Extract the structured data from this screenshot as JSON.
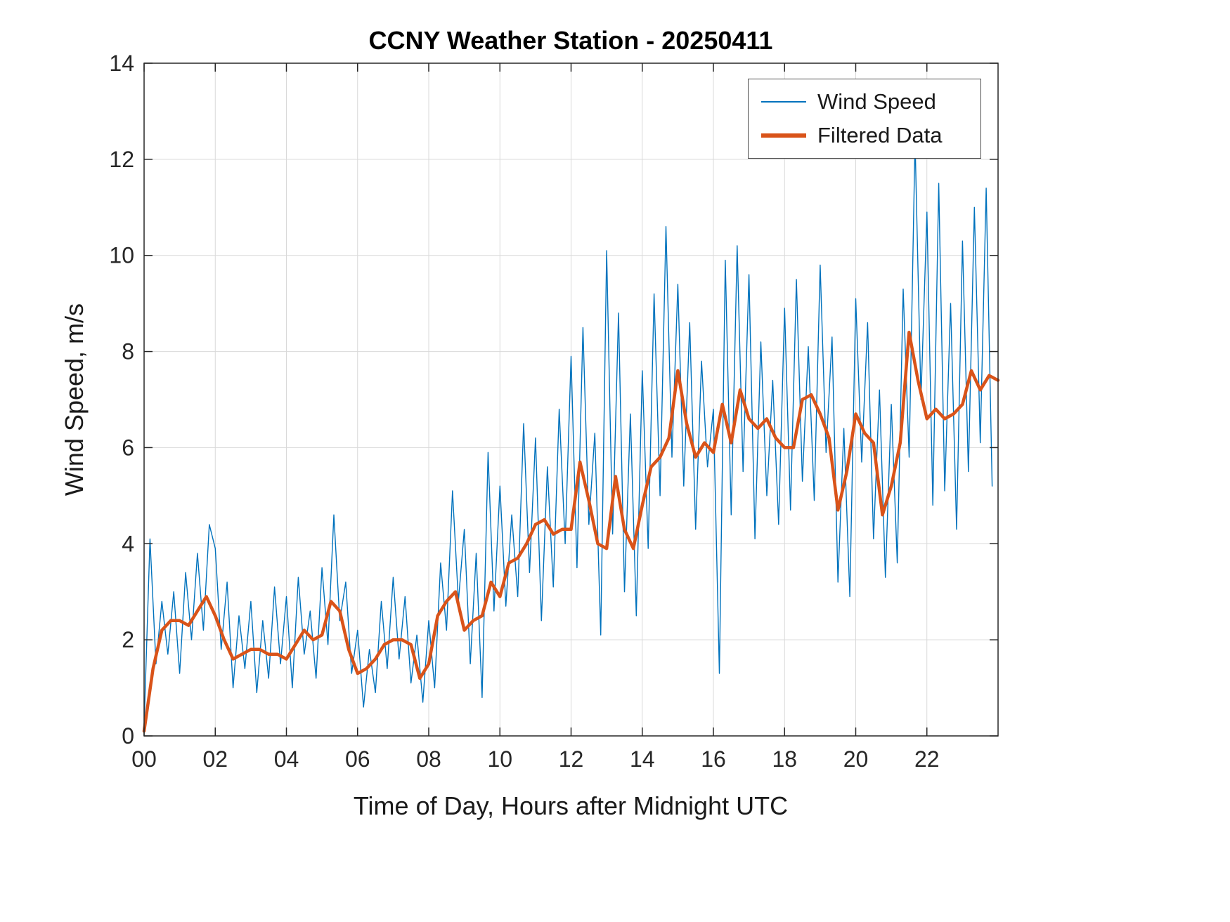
{
  "figure": {
    "background": "#ffffff"
  },
  "chart_data": {
    "type": "line",
    "title": "CCNY Weather Station - 20250411",
    "xlabel": "Time of Day, Hours after Midnight UTC",
    "ylabel": "Wind Speed, m/s",
    "xlim": [
      0,
      24
    ],
    "ylim": [
      0,
      14
    ],
    "grid": true,
    "grid_color": "#d9d9d9",
    "axis_color": "#262626",
    "xticks": {
      "values": [
        0,
        2,
        4,
        6,
        8,
        10,
        12,
        14,
        16,
        18,
        20,
        22
      ],
      "labels": [
        "00",
        "02",
        "04",
        "06",
        "08",
        "10",
        "12",
        "14",
        "16",
        "18",
        "20",
        "22"
      ]
    },
    "yticks": {
      "values": [
        0,
        2,
        4,
        6,
        8,
        10,
        12,
        14
      ],
      "labels": [
        "0",
        "2",
        "4",
        "6",
        "8",
        "10",
        "12",
        "14"
      ]
    },
    "legend": {
      "position": "northeast",
      "entries": [
        {
          "label": "Wind Speed",
          "color": "#0072BD",
          "sample_thickness": 2
        },
        {
          "label": "Filtered Data",
          "color": "#D95319",
          "sample_thickness": 6
        }
      ]
    },
    "series": [
      {
        "name": "Wind Speed",
        "color": "#0072BD",
        "width": 1.4,
        "x0": 0,
        "dx": 0.16667,
        "values": [
          0.2,
          4.1,
          1.5,
          2.8,
          1.7,
          3.0,
          1.3,
          3.4,
          2.0,
          3.8,
          2.2,
          4.4,
          3.9,
          1.8,
          3.2,
          1.0,
          2.5,
          1.4,
          2.8,
          0.9,
          2.4,
          1.2,
          3.1,
          1.5,
          2.9,
          1.0,
          3.3,
          1.7,
          2.6,
          1.2,
          3.5,
          1.9,
          4.6,
          2.4,
          3.2,
          1.3,
          2.2,
          0.6,
          1.8,
          0.9,
          2.8,
          1.4,
          3.3,
          1.6,
          2.9,
          1.1,
          2.1,
          0.7,
          2.4,
          1.0,
          3.6,
          2.2,
          5.1,
          2.8,
          4.3,
          1.5,
          3.8,
          0.8,
          5.9,
          2.6,
          5.2,
          2.7,
          4.6,
          2.9,
          6.5,
          3.4,
          6.2,
          2.4,
          5.6,
          3.1,
          6.8,
          4.0,
          7.9,
          3.5,
          8.5,
          4.4,
          6.3,
          2.1,
          10.1,
          4.2,
          8.8,
          3.0,
          6.7,
          2.5,
          7.6,
          3.9,
          9.2,
          5.0,
          10.6,
          5.8,
          9.4,
          5.2,
          8.6,
          4.3,
          7.8,
          5.6,
          6.8,
          1.3,
          9.9,
          4.6,
          10.2,
          5.5,
          9.6,
          4.1,
          8.2,
          5.0,
          7.4,
          4.4,
          8.9,
          4.7,
          9.5,
          5.3,
          8.1,
          4.9,
          9.8,
          5.9,
          8.3,
          3.2,
          6.4,
          2.9,
          9.1,
          5.7,
          8.6,
          4.1,
          7.2,
          3.3,
          6.9,
          3.6,
          9.3,
          5.8,
          12.4,
          7.0,
          10.9,
          4.8,
          11.5,
          5.1,
          9.0,
          4.3,
          10.3,
          5.5,
          11.0,
          6.1,
          11.4,
          5.2
        ]
      },
      {
        "name": "Filtered Data",
        "color": "#D95319",
        "width": 4.5,
        "x0": 0,
        "dx": 0.25,
        "values": [
          0.1,
          1.4,
          2.2,
          2.4,
          2.4,
          2.3,
          2.6,
          2.9,
          2.5,
          2.0,
          1.6,
          1.7,
          1.8,
          1.8,
          1.7,
          1.7,
          1.6,
          1.9,
          2.2,
          2.0,
          2.1,
          2.8,
          2.6,
          1.8,
          1.3,
          1.4,
          1.6,
          1.9,
          2.0,
          2.0,
          1.9,
          1.2,
          1.5,
          2.5,
          2.8,
          3.0,
          2.2,
          2.4,
          2.5,
          3.2,
          2.9,
          3.6,
          3.7,
          4.0,
          4.4,
          4.5,
          4.2,
          4.3,
          4.3,
          5.7,
          4.9,
          4.0,
          3.9,
          5.4,
          4.3,
          3.9,
          4.8,
          5.6,
          5.8,
          6.2,
          7.6,
          6.5,
          5.8,
          6.1,
          5.9,
          6.9,
          6.1,
          7.2,
          6.6,
          6.4,
          6.6,
          6.2,
          6.0,
          6.0,
          7.0,
          7.1,
          6.7,
          6.2,
          4.7,
          5.5,
          6.7,
          6.3,
          6.1,
          4.6,
          5.2,
          6.1,
          8.4,
          7.4,
          6.6,
          6.8,
          6.6,
          6.7,
          6.9,
          7.6,
          7.2,
          7.5,
          7.4
        ]
      }
    ]
  }
}
